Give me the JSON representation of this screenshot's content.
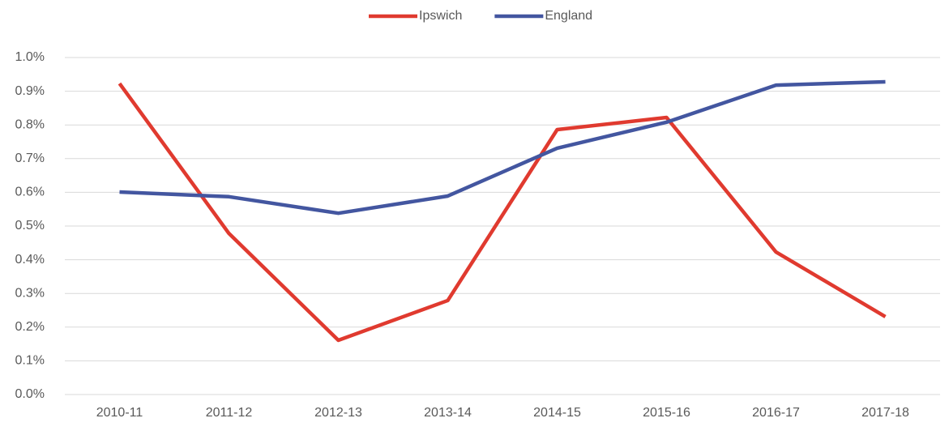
{
  "chart_data": {
    "type": "line",
    "categories": [
      "2010-11",
      "2011-12",
      "2012-13",
      "2013-14",
      "2014-15",
      "2015-16",
      "2016-17",
      "2017-18"
    ],
    "series": [
      {
        "name": "Ipswich",
        "color": "#e03a2f",
        "values": [
          0.923,
          0.478,
          0.161,
          0.279,
          0.786,
          0.822,
          0.423,
          0.231
        ]
      },
      {
        "name": "England",
        "color": "#4356a0",
        "values": [
          0.601,
          0.587,
          0.538,
          0.589,
          0.731,
          0.808,
          0.918,
          0.928
        ]
      }
    ],
    "ylim": [
      0,
      1.0
    ],
    "yticks": [
      {
        "value": 0,
        "label": "0.0%"
      },
      {
        "value": 0.1,
        "label": "0.1%"
      },
      {
        "value": 0.2,
        "label": "0.2%"
      },
      {
        "value": 0.3,
        "label": "0.3%"
      },
      {
        "value": 0.4,
        "label": "0.4%"
      },
      {
        "value": 0.5,
        "label": "0.5%"
      },
      {
        "value": 0.6,
        "label": "0.6%"
      },
      {
        "value": 0.7,
        "label": "0.7%"
      },
      {
        "value": 0.8,
        "label": "0.8%"
      },
      {
        "value": 0.9,
        "label": "0.9%"
      },
      {
        "value": 1.0,
        "label": "1.0%"
      }
    ],
    "grid": true,
    "legend": "top"
  }
}
